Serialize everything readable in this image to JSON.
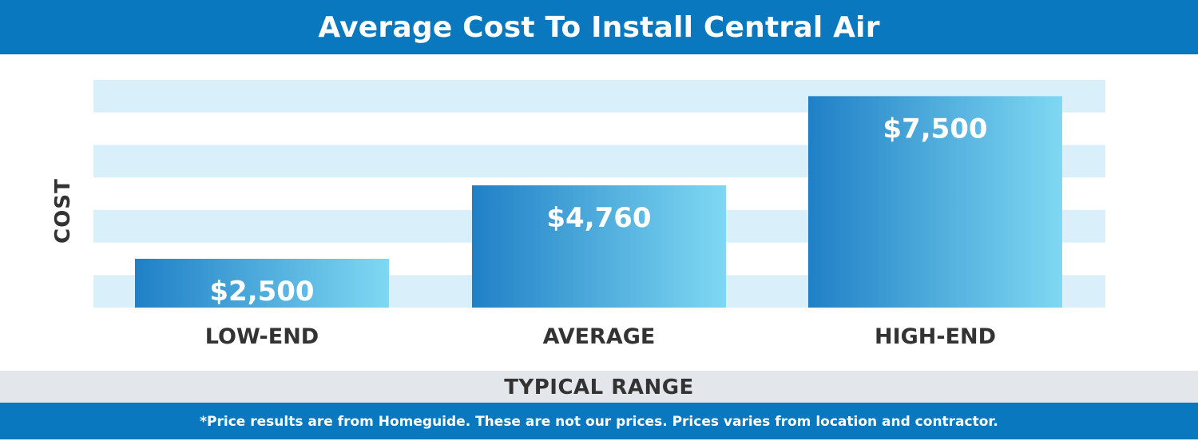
{
  "colors": {
    "header_bg": "#0a78bf",
    "footer_bg": "#0a78bf",
    "band": "#d9f0fb",
    "bar_dark": "#1f80c6",
    "bar_light": "#7fd8f2",
    "axis_text": "#333333",
    "range_band": "#e3e6ea"
  },
  "chart_data": {
    "type": "bar",
    "title": "Average Cost To Install Central Air",
    "xlabel": "TYPICAL RANGE",
    "ylabel": "COST",
    "categories": [
      "LOW-END",
      "AVERAGE",
      "HIGH-END"
    ],
    "values": [
      2500,
      4760,
      7500
    ],
    "value_labels": [
      "$2,500",
      "$4,760",
      "$7,500"
    ],
    "ylim": [
      1000,
      8000
    ],
    "grid": "alternating horizontal bands",
    "legend": "none"
  },
  "footer": {
    "note": "*Price results are from Homeguide. These are not our prices. Prices varies from location and contractor."
  }
}
